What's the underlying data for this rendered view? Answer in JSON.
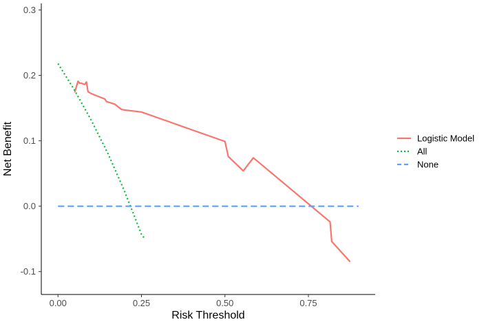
{
  "chart_data": {
    "type": "line",
    "title": "",
    "xlabel": "Risk Threshold",
    "ylabel": "Net Benefit",
    "xlim": [
      -0.05,
      0.95
    ],
    "ylim": [
      -0.135,
      0.31
    ],
    "x_ticks": [
      0.0,
      0.25,
      0.5,
      0.75
    ],
    "x_tick_labels": [
      "0.00",
      "0.25",
      "0.50",
      "0.75"
    ],
    "y_ticks": [
      -0.1,
      0.0,
      0.1,
      0.2,
      0.3
    ],
    "y_tick_labels": [
      "-0.1",
      "0.0",
      "0.1",
      "0.2",
      "0.3"
    ],
    "grid": false,
    "legend_position": "right",
    "series": [
      {
        "name": "Logistic Model",
        "color": "#F8766D",
        "dash": "solid",
        "x": [
          0.05,
          0.06,
          0.065,
          0.07,
          0.08,
          0.085,
          0.09,
          0.1,
          0.12,
          0.14,
          0.145,
          0.17,
          0.18,
          0.19,
          0.2,
          0.25,
          0.5,
          0.51,
          0.555,
          0.585,
          0.815,
          0.82,
          0.875
        ],
        "y": [
          0.174,
          0.191,
          0.188,
          0.188,
          0.186,
          0.19,
          0.175,
          0.172,
          0.168,
          0.164,
          0.16,
          0.156,
          0.152,
          0.148,
          0.147,
          0.144,
          0.099,
          0.076,
          0.054,
          0.074,
          -0.024,
          -0.054,
          -0.085
        ]
      },
      {
        "name": "All",
        "color": "#00BA38",
        "dash": "dotted",
        "x": [
          0.0,
          0.05,
          0.1,
          0.15,
          0.2,
          0.25,
          0.26
        ],
        "y": [
          0.218,
          0.177,
          0.131,
          0.08,
          0.022,
          -0.043,
          -0.05
        ]
      },
      {
        "name": "None",
        "color": "#619CFF",
        "dash": "dashed",
        "x": [
          0.0,
          0.9
        ],
        "y": [
          0.0,
          0.0
        ]
      }
    ]
  }
}
